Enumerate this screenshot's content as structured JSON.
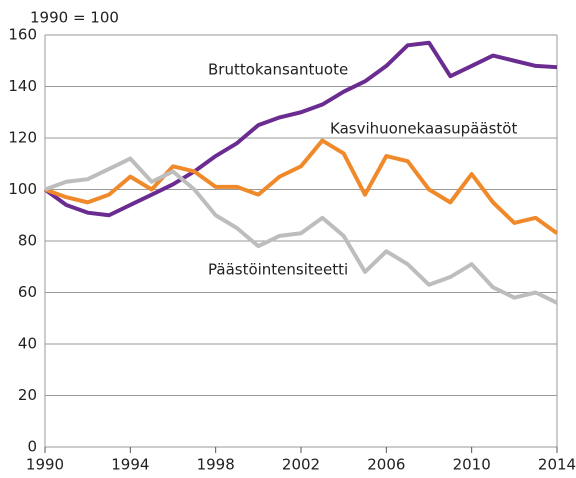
{
  "chart_data": {
    "type": "line",
    "y_label": "1990 = 100",
    "x": [
      1990,
      1991,
      1992,
      1993,
      1994,
      1995,
      1996,
      1997,
      1998,
      1999,
      2000,
      2001,
      2002,
      2003,
      2004,
      2005,
      2006,
      2007,
      2008,
      2009,
      2010,
      2011,
      2012,
      2013,
      2014
    ],
    "series": [
      {
        "name": "Bruttokansantuote",
        "color": "#6a2c91",
        "values": [
          100,
          94,
          91,
          90,
          94,
          98,
          102,
          107,
          113,
          118,
          125,
          128,
          130,
          133,
          138,
          142,
          148,
          156,
          157,
          144,
          148,
          152,
          150,
          148,
          147.5
        ]
      },
      {
        "name": "Kasvihuonekaasupäästöt",
        "color": "#f0892a",
        "values": [
          100,
          97,
          95,
          98,
          105,
          100,
          109,
          107,
          101,
          101,
          98,
          105,
          109,
          119,
          114,
          98,
          113,
          111,
          100,
          95,
          106,
          95,
          87,
          89,
          83
        ]
      },
      {
        "name": "Päästöintensiteetti",
        "color": "#bdbdbd",
        "values": [
          100,
          103,
          104,
          108,
          112,
          103,
          107,
          100,
          90,
          85,
          78,
          82,
          83,
          89,
          82,
          68,
          76,
          71,
          63,
          66,
          71,
          62,
          58,
          60,
          56
        ]
      }
    ],
    "xlim": [
      1990,
      2014
    ],
    "xticks": [
      1990,
      1994,
      1998,
      2002,
      2006,
      2010,
      2014
    ],
    "ylim": [
      0,
      160
    ],
    "yticks": [
      0,
      20,
      40,
      60,
      80,
      100,
      120,
      140,
      160
    ],
    "grid": true
  }
}
